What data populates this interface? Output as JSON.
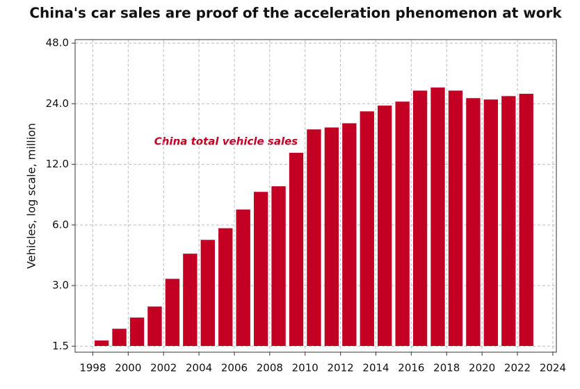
{
  "chart_data": {
    "type": "bar",
    "title": "China's car sales are proof of the acceleration phenomenon at work",
    "ylabel": "Vehicles, log scale, million",
    "annotation": "China total vehicle sales",
    "log_y": true,
    "grid": true,
    "color": "#c20024",
    "series": [
      {
        "name": "China total vehicle sales",
        "color": "#c20024",
        "x": [
          1998.5,
          1999.5,
          2000.5,
          2001.5,
          2002.5,
          2003.5,
          2004.5,
          2005.5,
          2006.5,
          2007.5,
          2008.5,
          2009.5,
          2010.5,
          2011.5,
          2012.5,
          2013.5,
          2014.5,
          2015.5,
          2016.5,
          2017.5,
          2018.5,
          2019.5,
          2020.5,
          2021.5,
          2022.5
        ],
        "values": [
          1.6,
          1.83,
          2.08,
          2.36,
          3.24,
          4.32,
          5.06,
          5.78,
          7.16,
          8.76,
          9.34,
          13.7,
          17.9,
          18.3,
          19.2,
          22.0,
          23.5,
          24.6,
          27.9,
          28.9,
          27.9,
          25.6,
          25.2,
          26.2,
          26.9
        ]
      }
    ],
    "xlim": [
      1997,
      2024.2
    ],
    "xticks": [
      1998,
      2000,
      2002,
      2004,
      2006,
      2008,
      2010,
      2012,
      2014,
      2016,
      2018,
      2020,
      2022,
      2024
    ],
    "ylim": [
      1.4,
      50
    ],
    "yticks": [
      {
        "value": 1.5,
        "label": "1.5"
      },
      {
        "value": 3,
        "label": "3.0"
      },
      {
        "value": 6,
        "label": "6.0"
      },
      {
        "value": 12,
        "label": "12.0"
      },
      {
        "value": 24,
        "label": "24.0"
      },
      {
        "value": 48,
        "label": "48.0"
      }
    ]
  }
}
